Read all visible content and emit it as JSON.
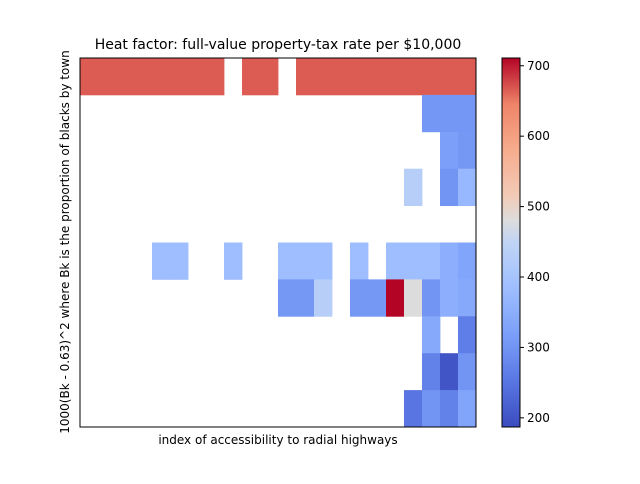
{
  "chart_data": {
    "type": "heatmap",
    "title": "Heat factor: full-value property-tax rate per $10,000",
    "xlabel": "index of accessibility to radial highways",
    "ylabel": "1000(Bk - 0.63)^2 where Bk is the proportion of blacks by town",
    "grid": false,
    "legend": "colorbar-right",
    "colormap": "coolwarm",
    "color_range": [
      187,
      711
    ],
    "colorbar_ticks": [
      200,
      300,
      400,
      500,
      600,
      700
    ],
    "n_cols": 22,
    "n_rows": 10,
    "cells": [
      [
        666,
        666,
        666,
        666,
        666,
        666,
        666,
        666,
        null,
        666,
        666,
        null,
        666,
        666,
        666,
        666,
        666,
        666,
        666,
        666,
        666,
        666
      ],
      [
        null,
        null,
        null,
        null,
        null,
        null,
        null,
        null,
        null,
        null,
        null,
        null,
        null,
        null,
        null,
        null,
        null,
        null,
        null,
        304,
        304,
        304
      ],
      [
        null,
        null,
        null,
        null,
        null,
        null,
        null,
        null,
        null,
        null,
        null,
        null,
        null,
        null,
        null,
        null,
        null,
        null,
        null,
        null,
        320,
        307
      ],
      [
        null,
        null,
        null,
        null,
        null,
        null,
        null,
        null,
        null,
        null,
        null,
        null,
        null,
        null,
        null,
        null,
        null,
        null,
        430,
        null,
        300,
        370
      ],
      [
        null,
        null,
        null,
        null,
        null,
        null,
        null,
        null,
        null,
        null,
        null,
        null,
        null,
        null,
        null,
        null,
        null,
        null,
        null,
        null,
        null,
        null
      ],
      [
        null,
        null,
        null,
        null,
        384,
        384,
        null,
        null,
        384,
        null,
        null,
        384,
        384,
        384,
        null,
        384,
        null,
        384,
        384,
        384,
        350,
        330
      ],
      [
        null,
        null,
        null,
        null,
        null,
        null,
        null,
        null,
        null,
        null,
        null,
        307,
        307,
        430,
        null,
        307,
        307,
        711,
        480,
        300,
        350,
        340
      ],
      [
        null,
        null,
        null,
        null,
        null,
        null,
        null,
        null,
        null,
        null,
        null,
        null,
        null,
        null,
        null,
        null,
        null,
        null,
        null,
        340,
        null,
        264
      ],
      [
        null,
        null,
        null,
        null,
        null,
        null,
        null,
        null,
        null,
        null,
        null,
        null,
        null,
        null,
        null,
        null,
        null,
        null,
        null,
        270,
        200,
        300
      ],
      [
        null,
        null,
        null,
        null,
        null,
        null,
        null,
        null,
        null,
        null,
        null,
        null,
        null,
        null,
        null,
        null,
        null,
        null,
        250,
        300,
        270,
        330
      ]
    ]
  }
}
